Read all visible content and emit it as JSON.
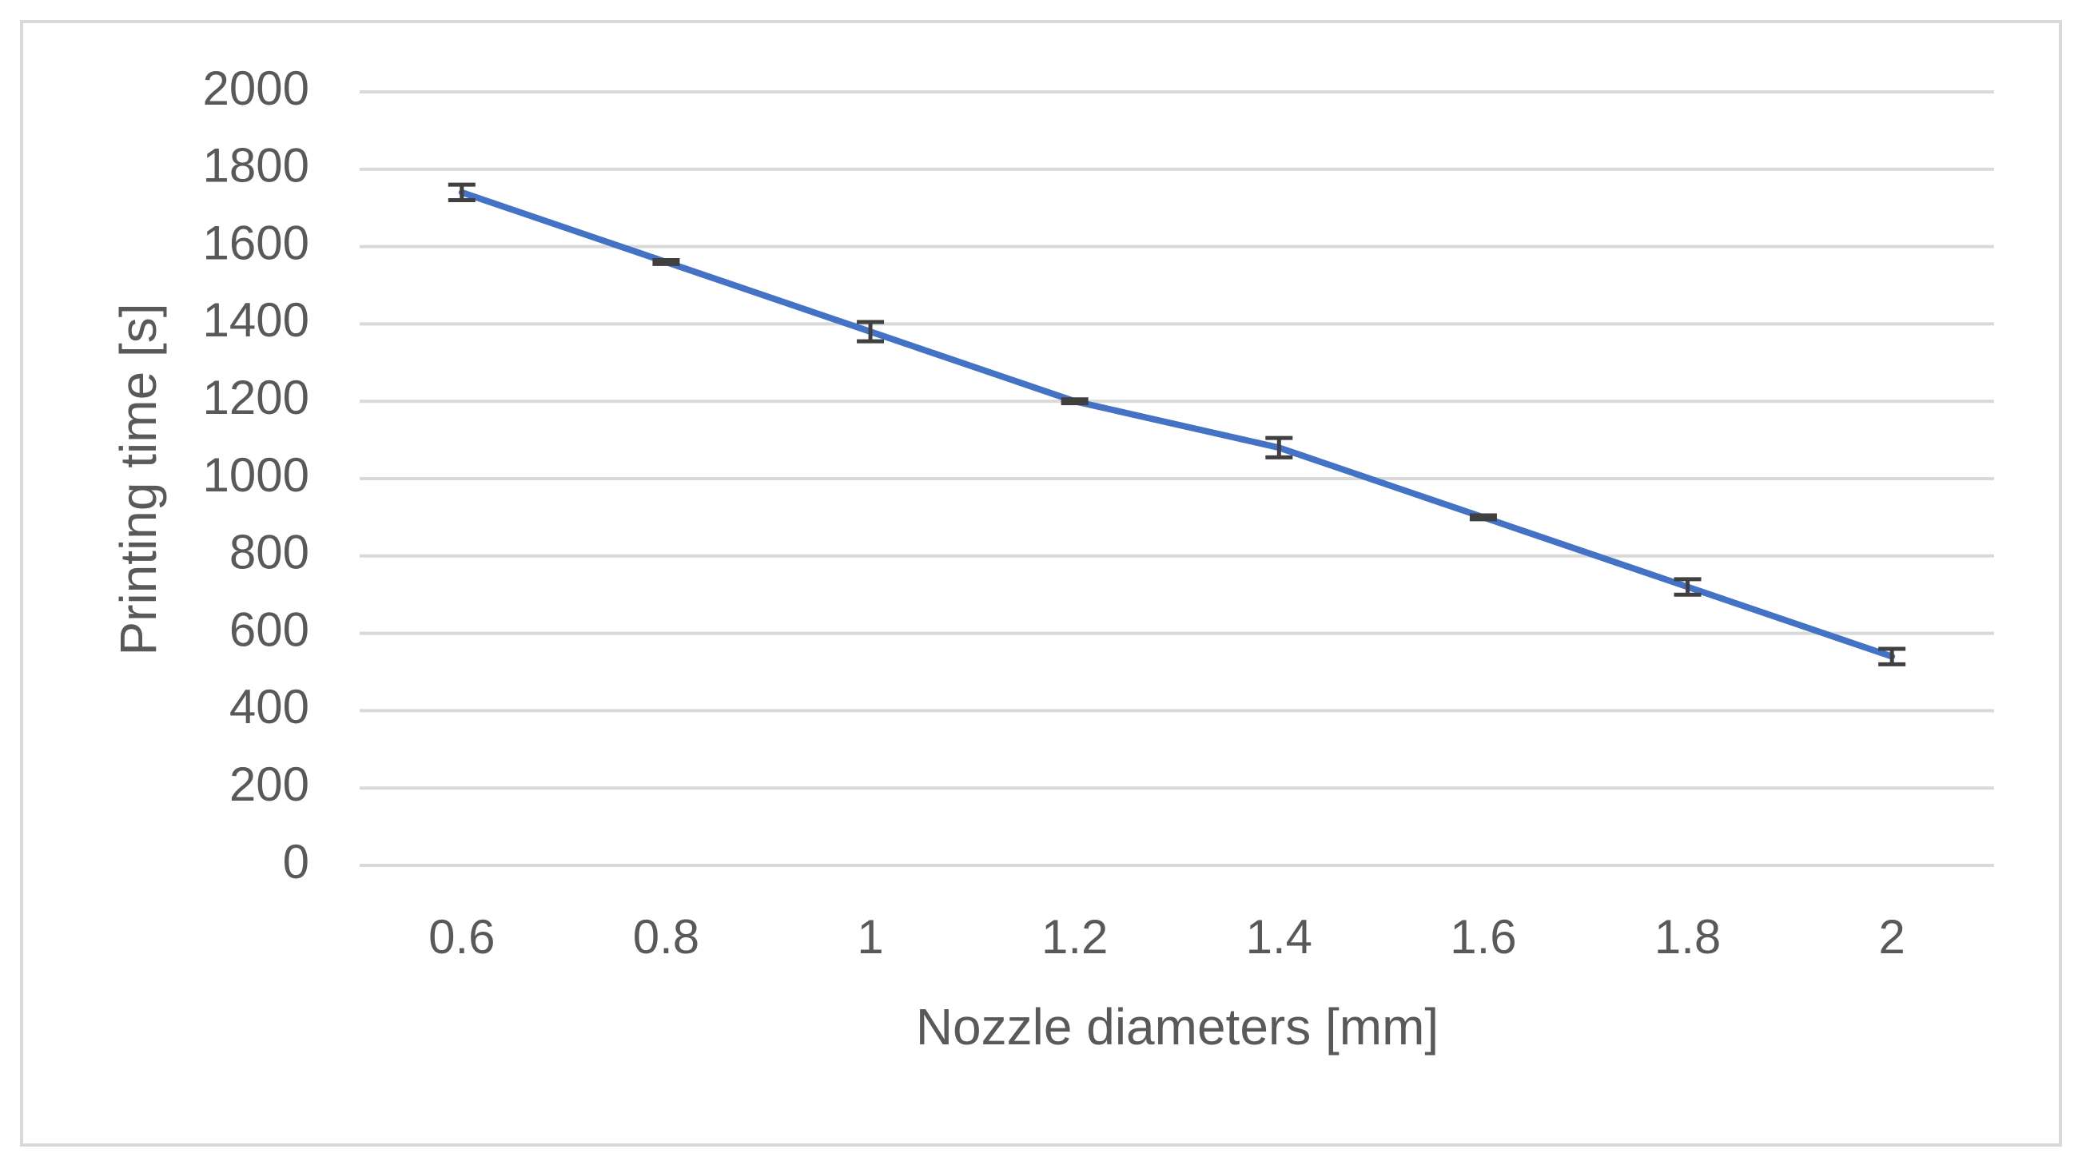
{
  "chart_data": {
    "type": "line",
    "x_label": "Nozzle diameters [mm]",
    "y_label": "Printing time [s]",
    "categories": [
      "0.6",
      "0.8",
      "1",
      "1.2",
      "1.4",
      "1.6",
      "1.8",
      "2"
    ],
    "values": [
      1740,
      1560,
      1380,
      1200,
      1080,
      900,
      720,
      540
    ],
    "errors": [
      20,
      5,
      25,
      5,
      25,
      5,
      20,
      20
    ],
    "color": "#4472c4",
    "error_color": "#404040",
    "ylim": [
      0,
      2000
    ],
    "yticks": [
      0,
      200,
      400,
      600,
      800,
      1000,
      1200,
      1400,
      1600,
      1800,
      2000
    ],
    "grid": true
  }
}
